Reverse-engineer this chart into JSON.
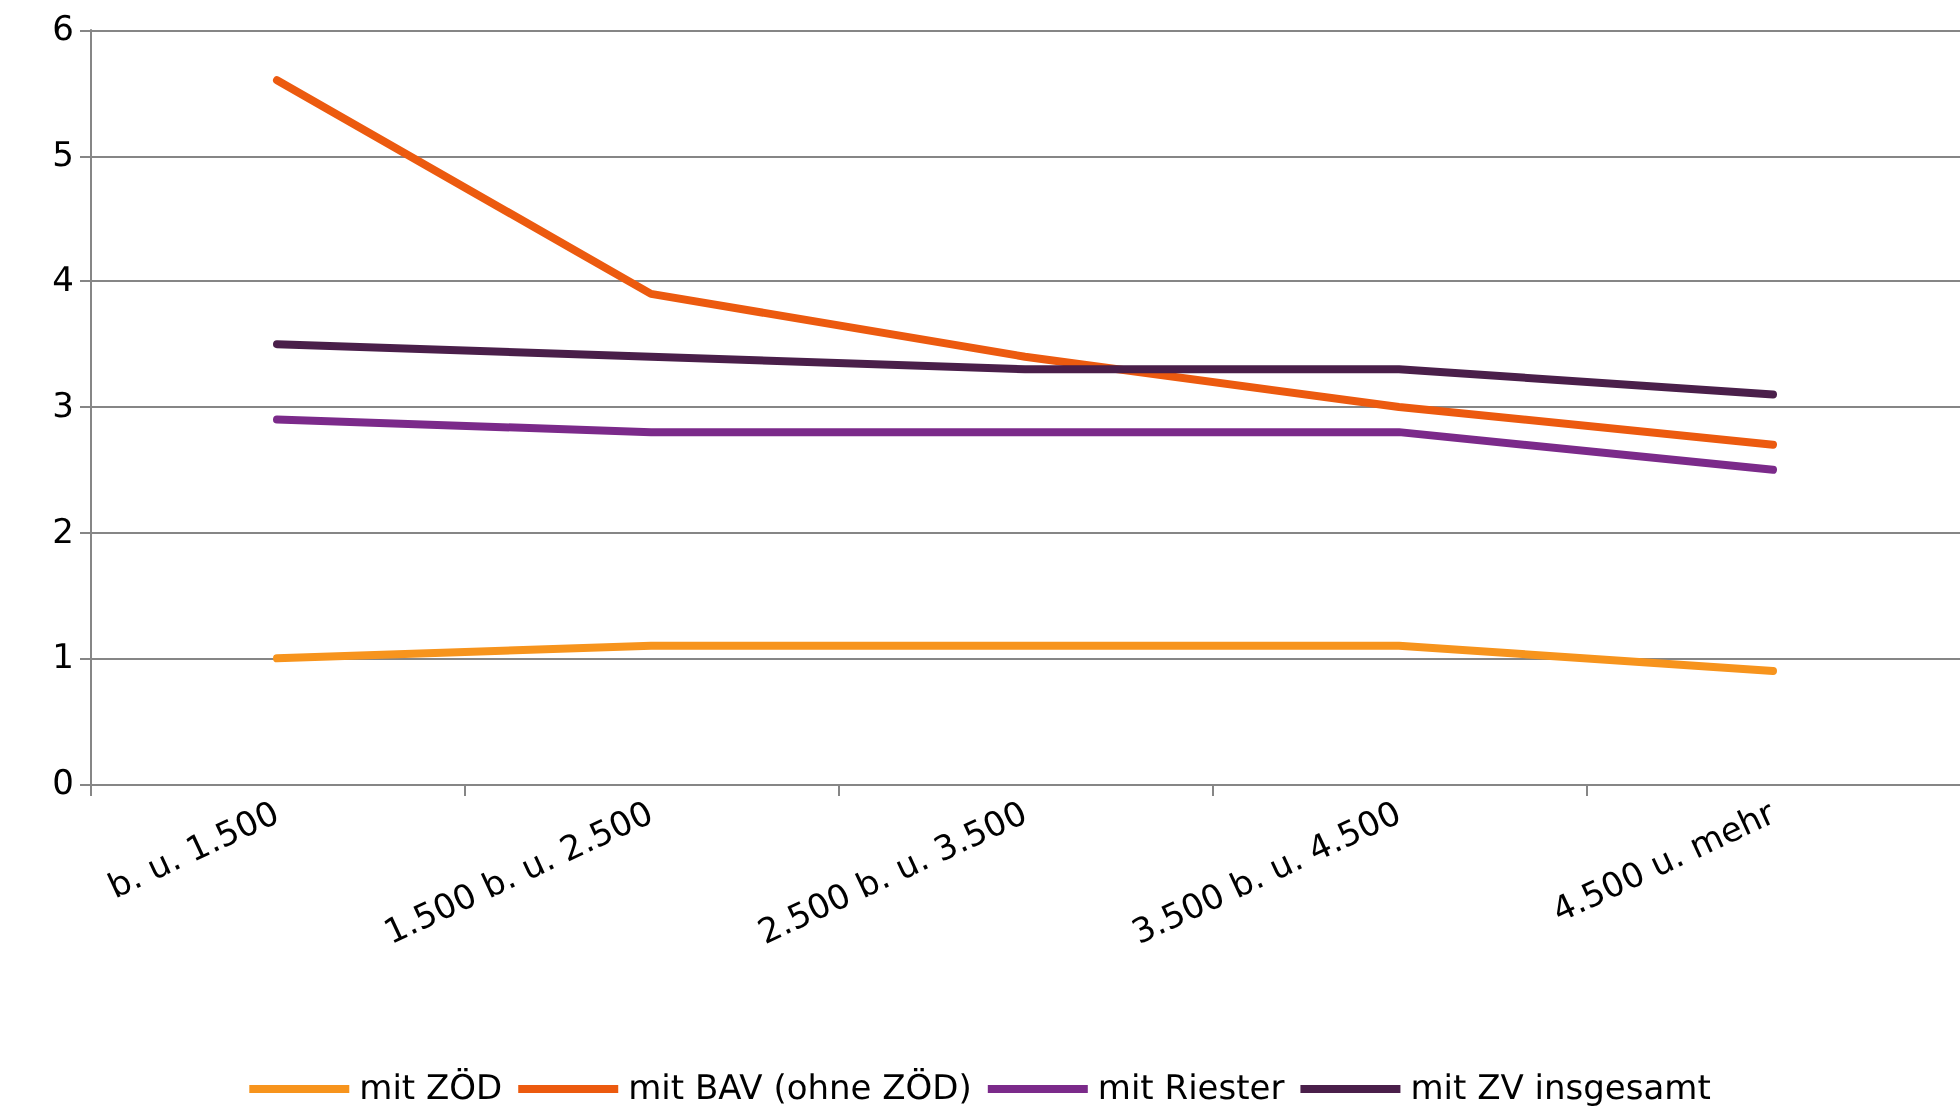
{
  "chart_data": {
    "type": "line",
    "categories": [
      "b. u. 1.500",
      "1.500 b. u. 2.500",
      "2.500 b. u. 3.500",
      "3.500 b. u. 4.500",
      "4.500 u. mehr"
    ],
    "series": [
      {
        "name": "mit ZÖD",
        "color": "#f7941d",
        "values": [
          1.0,
          1.1,
          1.1,
          1.1,
          0.9
        ]
      },
      {
        "name": "mit BAV (ohne ZÖD)",
        "color": "#ec5a0f",
        "values": [
          5.6,
          3.9,
          3.4,
          3.0,
          2.7
        ]
      },
      {
        "name": "mit Riester",
        "color": "#7b2a8a",
        "values": [
          2.9,
          2.8,
          2.8,
          2.8,
          2.5
        ]
      },
      {
        "name": "mit ZV insgesamt",
        "color": "#4a1f4a",
        "values": [
          3.5,
          3.4,
          3.3,
          3.3,
          3.1
        ]
      }
    ],
    "ylim": [
      0,
      6
    ],
    "yticks": [
      0,
      1,
      2,
      3,
      4,
      5,
      6
    ],
    "grid": "y",
    "legend": "bottom",
    "marker": "none",
    "line_style": "solid"
  }
}
